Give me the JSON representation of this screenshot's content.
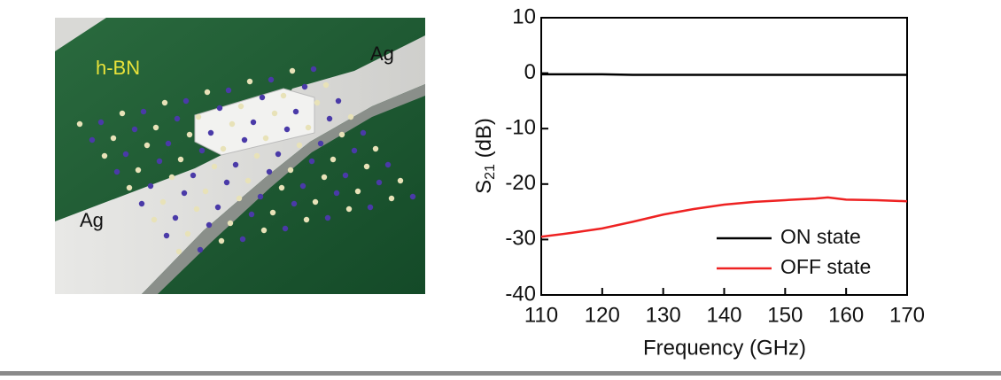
{
  "illustration": {
    "labels": [
      "h-BN",
      "Ag",
      "Ag"
    ]
  },
  "chart_data": {
    "type": "line",
    "x_label": "Frequency (GHz)",
    "y_label": [
      "S",
      "21",
      " (dB)"
    ],
    "x": [
      110,
      115,
      120,
      125,
      130,
      135,
      140,
      145,
      150,
      155,
      157,
      160,
      165,
      170
    ],
    "series": [
      {
        "name": "ON state",
        "color": "#000000",
        "values": [
          -0.2,
          -0.2,
          -0.2,
          -0.3,
          -0.3,
          -0.3,
          -0.3,
          -0.3,
          -0.3,
          -0.3,
          -0.3,
          -0.3,
          -0.3,
          -0.3
        ]
      },
      {
        "name": "OFF state",
        "color": "#ee2222",
        "values": [
          -29.5,
          -28.8,
          -28,
          -26.8,
          -25.5,
          -24.5,
          -23.7,
          -23.2,
          -22.9,
          -22.6,
          -22.4,
          -22.8,
          -22.9,
          -23.1
        ]
      }
    ],
    "xlim": [
      110,
      170
    ],
    "xticks": [
      110,
      120,
      130,
      140,
      150,
      160,
      170
    ],
    "ylim": [
      -40,
      10
    ],
    "yticks": [
      10,
      0,
      -10,
      -20,
      -30,
      -40
    ],
    "legend": "lower right",
    "grid": false
  }
}
